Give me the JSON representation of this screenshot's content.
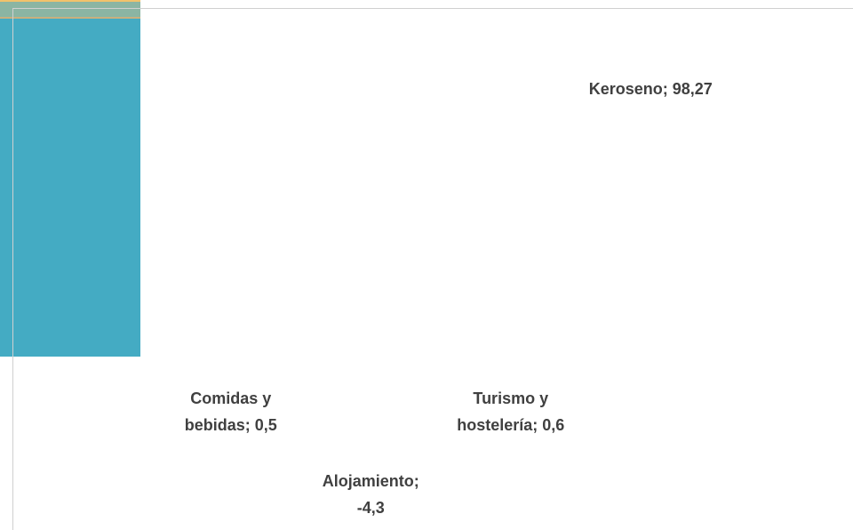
{
  "chart_data": {
    "type": "bar",
    "categories": [
      "Comidas y bebidas",
      "Alojamiento",
      "Turismo y hostelería",
      "Keroseno"
    ],
    "values": [
      0.5,
      -4.3,
      0.6,
      98.27
    ],
    "value_labels": [
      "0,5",
      "-4,3",
      "0,6",
      "98,27"
    ],
    "label_separator": ";",
    "colors": [
      "#f2c26b",
      "#8bb5a3",
      "#c9b07e",
      "#44abc3"
    ]
  }
}
